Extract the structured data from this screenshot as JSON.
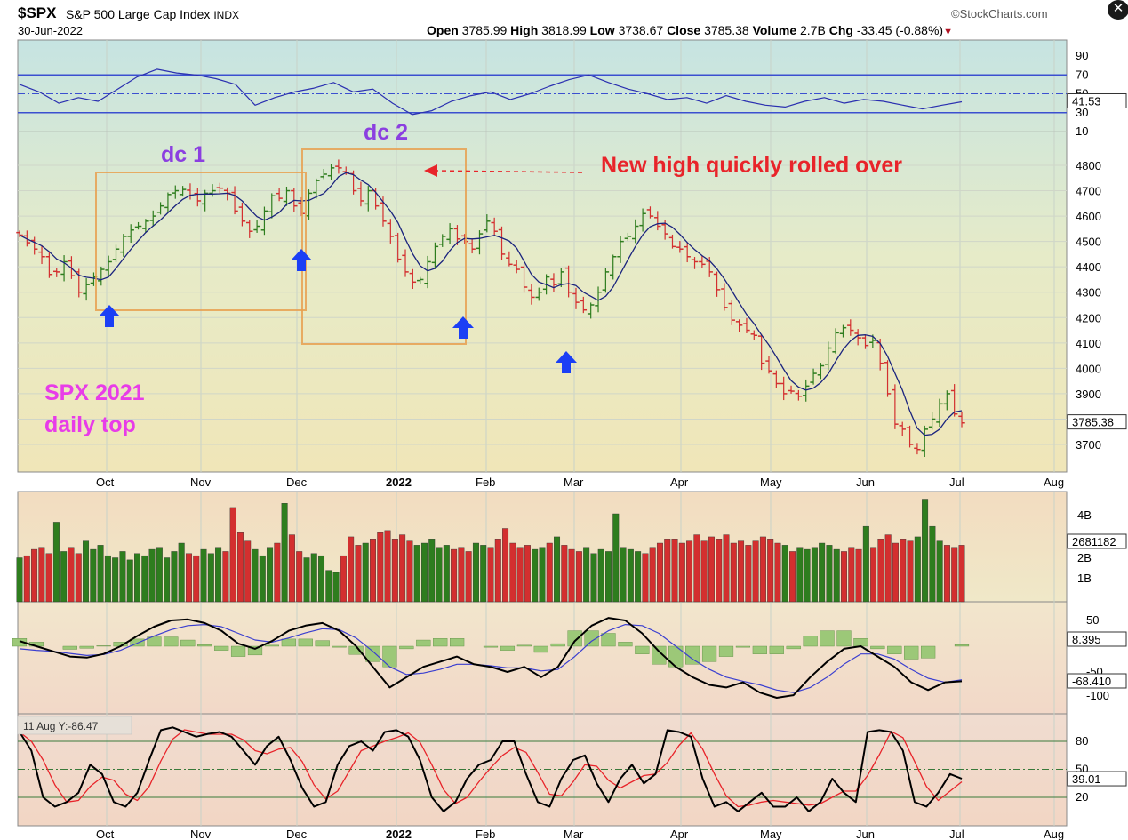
{
  "header": {
    "symbol": "$SPX",
    "name": "S&P 500 Large Cap Index",
    "exchange": "INDX",
    "date": "30-Jun-2022",
    "source": "©StockCharts.com",
    "ohlc": {
      "open_label": "Open",
      "open": "3785.99",
      "high_label": "High",
      "high": "3818.99",
      "low_label": "Low",
      "low": "3738.67",
      "close_label": "Close",
      "close": "3785.38",
      "volume_label": "Volume",
      "volume": "2.7B",
      "chg_label": "Chg",
      "chg": "-33.45 (-0.88%)"
    }
  },
  "colors": {
    "up": "#2e7d1e",
    "down": "#d32f2f",
    "ma": "#1a237e",
    "annotation_red": "#e8242a",
    "annotation_purple": "#8b3fe0",
    "annotation_magenta": "#e83ce8",
    "arrow_blue": "#1b3ff5",
    "box_orange": "#e8a050"
  },
  "annotations": {
    "dc1": "dc 1",
    "dc2": "dc 2",
    "new_high": "New high quickly rolled over",
    "spx_line1": "SPX 2021",
    "spx_line2": "daily top"
  },
  "chart_data": [
    {
      "type": "line",
      "panel": "rsi",
      "y_ticks": [
        "90",
        "70",
        "50",
        "30",
        "10"
      ],
      "last_value": "41.53",
      "levels": [
        70,
        50,
        30
      ],
      "values": [
        60,
        52,
        40,
        46,
        42,
        55,
        68,
        76,
        72,
        70,
        66,
        60,
        38,
        46,
        52,
        56,
        62,
        52,
        55,
        40,
        28,
        32,
        42,
        48,
        52,
        44,
        50,
        58,
        65,
        70,
        62,
        55,
        50,
        44,
        46,
        40,
        48,
        42,
        38,
        36,
        42,
        46,
        40,
        44,
        42,
        38,
        34,
        38,
        41.5
      ]
    },
    {
      "type": "candlestick",
      "panel": "price",
      "y_ticks": [
        "4800",
        "4700",
        "4600",
        "4500",
        "4400",
        "4300",
        "4200",
        "4100",
        "4000",
        "3900",
        "3800",
        "3700"
      ],
      "ylim": [
        3620,
        4830
      ],
      "x_ticks": [
        "Oct",
        "Nov",
        "Dec",
        "2022",
        "Feb",
        "Mar",
        "Apr",
        "May",
        "Jun",
        "Jul",
        "Aug"
      ],
      "last_value": "3785.38",
      "closes": [
        4525,
        4495,
        4470,
        4440,
        4370,
        4380,
        4420,
        4365,
        4300,
        4330,
        4360,
        4390,
        4420,
        4470,
        4520,
        4545,
        4560,
        4580,
        4600,
        4640,
        4685,
        4700,
        4705,
        4680,
        4660,
        4690,
        4700,
        4710,
        4690,
        4620,
        4580,
        4540,
        4560,
        4620,
        4680,
        4670,
        4700,
        4640,
        4610,
        4690,
        4740,
        4765,
        4790,
        4790,
        4770,
        4700,
        4660,
        4700,
        4640,
        4580,
        4520,
        4430,
        4380,
        4340,
        4350,
        4420,
        4480,
        4520,
        4550,
        4510,
        4500,
        4470,
        4530,
        4580,
        4540,
        4450,
        4410,
        4390,
        4320,
        4280,
        4300,
        4360,
        4330,
        4380,
        4300,
        4260,
        4230,
        4250,
        4300,
        4380,
        4440,
        4500,
        4520,
        4560,
        4610,
        4600,
        4560,
        4530,
        4480,
        4470,
        4440,
        4420,
        4410,
        4380,
        4310,
        4240,
        4190,
        4170,
        4150,
        4130,
        4020,
        3990,
        3940,
        3900,
        3910,
        3890,
        3930,
        3980,
        4010,
        4080,
        4140,
        4160,
        4150,
        4120,
        4090,
        4110,
        4020,
        3900,
        3780,
        3760,
        3700,
        3680,
        3760,
        3800,
        3860,
        3900,
        3820,
        3785
      ]
    },
    {
      "type": "bar",
      "panel": "volume",
      "y_ticks": [
        "4B",
        "2B",
        "1B"
      ],
      "last_value": "2681182",
      "values": [
        2.1,
        2.2,
        2.5,
        2.6,
        2.3,
        3.8,
        2.4,
        2.6,
        2.3,
        2.9,
        2.5,
        2.7,
        2.2,
        2.1,
        2.4,
        2.0,
        2.3,
        2.2,
        2.5,
        2.6,
        2.1,
        2.4,
        2.8,
        2.3,
        2.2,
        2.5,
        2.3,
        2.6,
        2.4,
        4.5,
        3.3,
        2.9,
        2.5,
        2.2,
        2.6,
        2.8,
        4.7,
        3.2,
        2.4,
        2.1,
        2.3,
        2.2,
        1.5,
        1.4,
        2.2,
        3.1,
        2.7,
        2.8,
        3.0,
        3.3,
        3.4,
        3.0,
        3.2,
        2.9,
        2.7,
        2.8,
        3.0,
        2.6,
        2.7,
        2.5,
        2.6,
        2.4,
        2.8,
        2.7,
        2.6,
        3.0,
        3.5,
        2.8,
        2.6,
        2.7,
        2.5,
        2.6,
        2.8,
        3.1,
        2.7,
        2.5,
        2.4,
        2.6,
        2.3,
        2.5,
        2.4,
        4.2,
        2.6,
        2.5,
        2.4,
        2.3,
        2.6,
        2.8,
        3.0,
        3.0,
        2.8,
        2.9,
        3.2,
        2.9,
        3.1,
        3.0,
        3.2,
        2.8,
        2.9,
        2.7,
        2.9,
        3.1,
        3.0,
        2.8,
        2.7,
        2.4,
        2.6,
        2.5,
        2.6,
        2.8,
        2.7,
        2.5,
        2.4,
        2.6,
        2.5,
        3.6,
        2.6,
        3.0,
        3.2,
        2.8,
        3.0,
        2.9,
        3.1,
        4.9,
        3.6,
        2.9,
        2.7,
        2.6,
        2.7
      ]
    },
    {
      "type": "line",
      "panel": "macd",
      "y_ticks": [
        "50",
        "-50",
        "-100"
      ],
      "last_values": [
        "8.395",
        "-68.410"
      ],
      "macd": [
        10,
        0,
        -10,
        -20,
        -22,
        -15,
        0,
        20,
        38,
        50,
        52,
        45,
        30,
        5,
        -5,
        10,
        30,
        40,
        45,
        30,
        0,
        -40,
        -80,
        -60,
        -40,
        -30,
        -20,
        -35,
        -40,
        -50,
        -40,
        -60,
        -40,
        10,
        40,
        55,
        50,
        25,
        -10,
        -40,
        -60,
        -75,
        -80,
        -70,
        -90,
        -100,
        -95,
        -60,
        -30,
        -5,
        0,
        -20,
        -40,
        -70,
        -85,
        -70,
        -68
      ],
      "signal": [
        -5,
        -8,
        -10,
        -14,
        -18,
        -16,
        -8,
        6,
        20,
        32,
        40,
        42,
        38,
        25,
        12,
        8,
        16,
        26,
        34,
        32,
        16,
        -10,
        -40,
        -55,
        -52,
        -45,
        -35,
        -35,
        -38,
        -42,
        -42,
        -48,
        -45,
        -20,
        10,
        30,
        42,
        40,
        25,
        0,
        -25,
        -45,
        -60,
        -68,
        -75,
        -85,
        -90,
        -80,
        -60,
        -35,
        -15,
        -15,
        -25,
        -45,
        -62,
        -70,
        -65
      ],
      "hist": [
        15,
        8,
        0,
        -6,
        -4,
        1,
        8,
        14,
        18,
        18,
        12,
        3,
        -8,
        -20,
        -17,
        2,
        14,
        14,
        11,
        -2,
        -16,
        -30,
        -40,
        -5,
        12,
        15,
        15,
        0,
        -2,
        -8,
        2,
        -12,
        5,
        30,
        30,
        25,
        8,
        -15,
        -35,
        -40,
        -35,
        -30,
        -20,
        -2,
        -15,
        -15,
        -5,
        20,
        30,
        30,
        15,
        -5,
        -15,
        -25,
        -23,
        0,
        3
      ]
    },
    {
      "type": "line",
      "panel": "stochastic",
      "y_ticks": [
        "80",
        "50",
        "20"
      ],
      "label": "11 Aug Y:-86.47",
      "last_value": "39.01",
      "levels": [
        80,
        50,
        20
      ],
      "k": [
        90,
        70,
        20,
        10,
        15,
        25,
        55,
        45,
        15,
        10,
        25,
        60,
        92,
        95,
        90,
        85,
        88,
        90,
        85,
        70,
        55,
        75,
        85,
        60,
        30,
        10,
        15,
        55,
        75,
        80,
        70,
        90,
        92,
        85,
        60,
        20,
        5,
        15,
        40,
        55,
        60,
        80,
        80,
        45,
        15,
        10,
        40,
        60,
        65,
        35,
        15,
        40,
        55,
        35,
        45,
        92,
        90,
        85,
        40,
        10,
        15,
        5,
        15,
        25,
        10,
        10,
        20,
        5,
        15,
        40,
        25,
        15,
        90,
        92,
        90,
        70,
        15,
        10,
        25,
        45,
        40
      ]
    }
  ]
}
